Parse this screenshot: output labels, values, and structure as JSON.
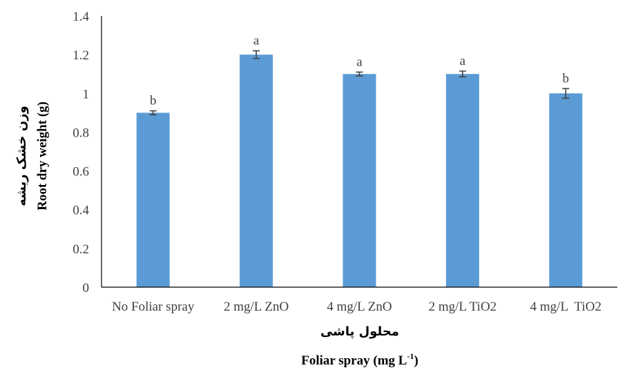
{
  "chart_data": {
    "type": "bar",
    "categories": [
      "No Foliar spray",
      "2 mg/L ZnO",
      "4 mg/L ZnO",
      "2 mg/L TiO2",
      "4 mg/L  TiO2"
    ],
    "values": [
      0.9,
      1.2,
      1.1,
      1.1,
      1.0
    ],
    "errors": [
      0.01,
      0.02,
      0.01,
      0.015,
      0.025
    ],
    "letters": [
      "b",
      "a",
      "a",
      "a",
      "b"
    ],
    "xlabel_fa": "محلول پاشی",
    "xlabel": "Foliar spray (mg L",
    "xlabel_sup": "-1",
    "xlabel_close": ")",
    "ylabel_fa": "وزن خشک ریشه",
    "ylabel": "Root dry weight (g)",
    "ylim": [
      0,
      1.4
    ],
    "yticks": [
      "0",
      "0.2",
      "0.4",
      "0.6",
      "0.8",
      "1",
      "1.2",
      "1.4"
    ],
    "bar_color": "#5B9BD5",
    "grid": false
  }
}
